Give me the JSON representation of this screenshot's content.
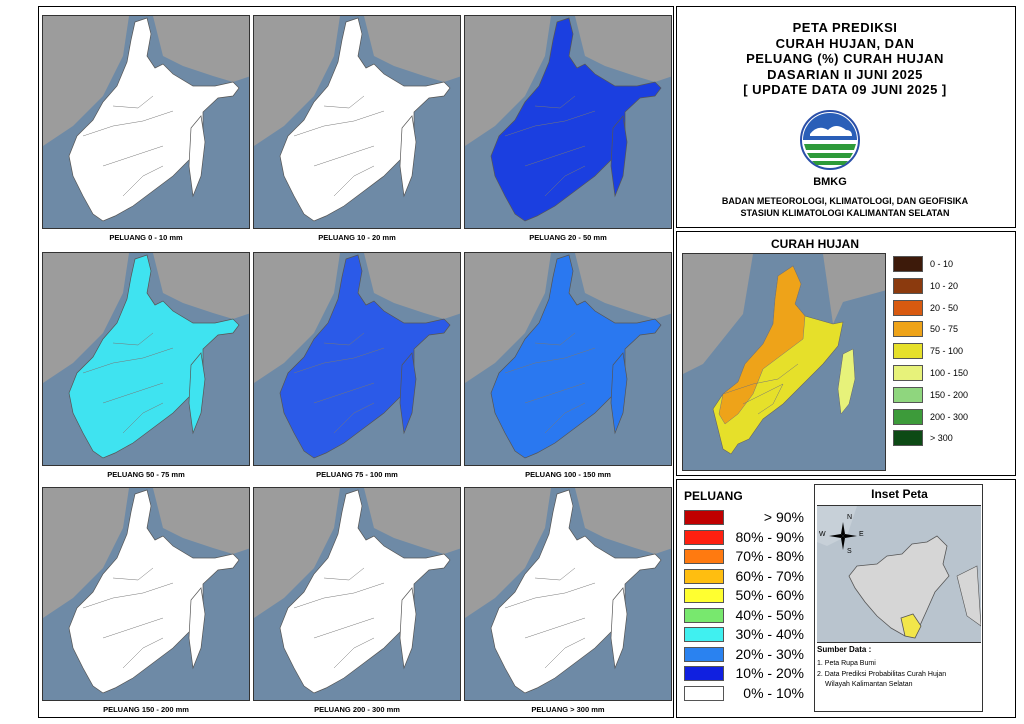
{
  "title_lines": [
    "PETA PREDIKSI",
    "CURAH HUJAN, DAN",
    "PELUANG (%) CURAH HUJAN",
    "DASARIAN II JUNI 2025",
    "[ UPDATE DATA 09 JUNI 2025 ]"
  ],
  "logo_text": "BMKG",
  "org_line1": "BADAN METEOROLOGI, KLIMATOLOGI, DAN GEOFISIKA",
  "org_line2": "STASIUN KLIMATOLOGI KALIMANTAN SELATAN",
  "panels": [
    {
      "label": "PELUANG 0 - 10 mm",
      "fill": "#ffffff"
    },
    {
      "label": "PELUANG 10 - 20 mm",
      "fill": "#ffffff"
    },
    {
      "label": "PELUANG 20 - 50 mm",
      "fill": "#1b3fe0"
    },
    {
      "label": "PELUANG 50 - 75 mm",
      "fill": "#3fe3f0"
    },
    {
      "label": "PELUANG 75 - 100 mm",
      "fill": "#2b5ae8"
    },
    {
      "label": "PELUANG 100 - 150 mm",
      "fill": "#2a78f0"
    },
    {
      "label": "PELUANG 150 - 200 mm",
      "fill": "#ffffff"
    },
    {
      "label": "PELUANG 200 - 300 mm",
      "fill": "#ffffff"
    },
    {
      "label": "PELUANG > 300 mm",
      "fill": "#ffffff"
    }
  ],
  "curah_hujan": {
    "title": "CURAH HUJAN",
    "map_fill": "#f0b020",
    "classes": [
      {
        "label": "0 - 10",
        "color": "#3d1a0a"
      },
      {
        "label": "10 - 20",
        "color": "#8b3a0e"
      },
      {
        "label": "20 - 50",
        "color": "#d85a10"
      },
      {
        "label": "50 - 75",
        "color": "#eea319"
      },
      {
        "label": "75 - 100",
        "color": "#e6e02a"
      },
      {
        "label": "100 - 150",
        "color": "#e7f27a"
      },
      {
        "label": "150 - 200",
        "color": "#8fd67e"
      },
      {
        "label": "200 - 300",
        "color": "#3d9b3a"
      },
      {
        "label": "> 300",
        "color": "#0d4a15"
      }
    ]
  },
  "peluang": {
    "title": "PELUANG",
    "classes": [
      {
        "label": "> 90%",
        "color": "#c00000"
      },
      {
        "label": "80% - 90%",
        "color": "#ff2010"
      },
      {
        "label": "70% - 80%",
        "color": "#ff7a10"
      },
      {
        "label": "60% - 70%",
        "color": "#ffbe10"
      },
      {
        "label": "50% - 60%",
        "color": "#ffff30"
      },
      {
        "label": "40% - 50%",
        "color": "#78e86e"
      },
      {
        "label": "30% - 40%",
        "color": "#40f0f0"
      },
      {
        "label": "20% - 30%",
        "color": "#2a82f0"
      },
      {
        "label": "10% - 20%",
        "color": "#1020e0"
      },
      {
        "label": "0% - 10%",
        "color": "#ffffff"
      }
    ]
  },
  "inset": {
    "title": "Inset Peta",
    "compass": {
      "n": "N",
      "s": "S",
      "e": "E",
      "w": "W"
    },
    "sumber_title": "Sumber Data :",
    "sumber_1": "1. Peta Rupa Bumi",
    "sumber_2": "2. Data Prediksi Probabilitas Curah Hujan",
    "sumber_3": "Wilayah Kalimantan Selatan"
  }
}
